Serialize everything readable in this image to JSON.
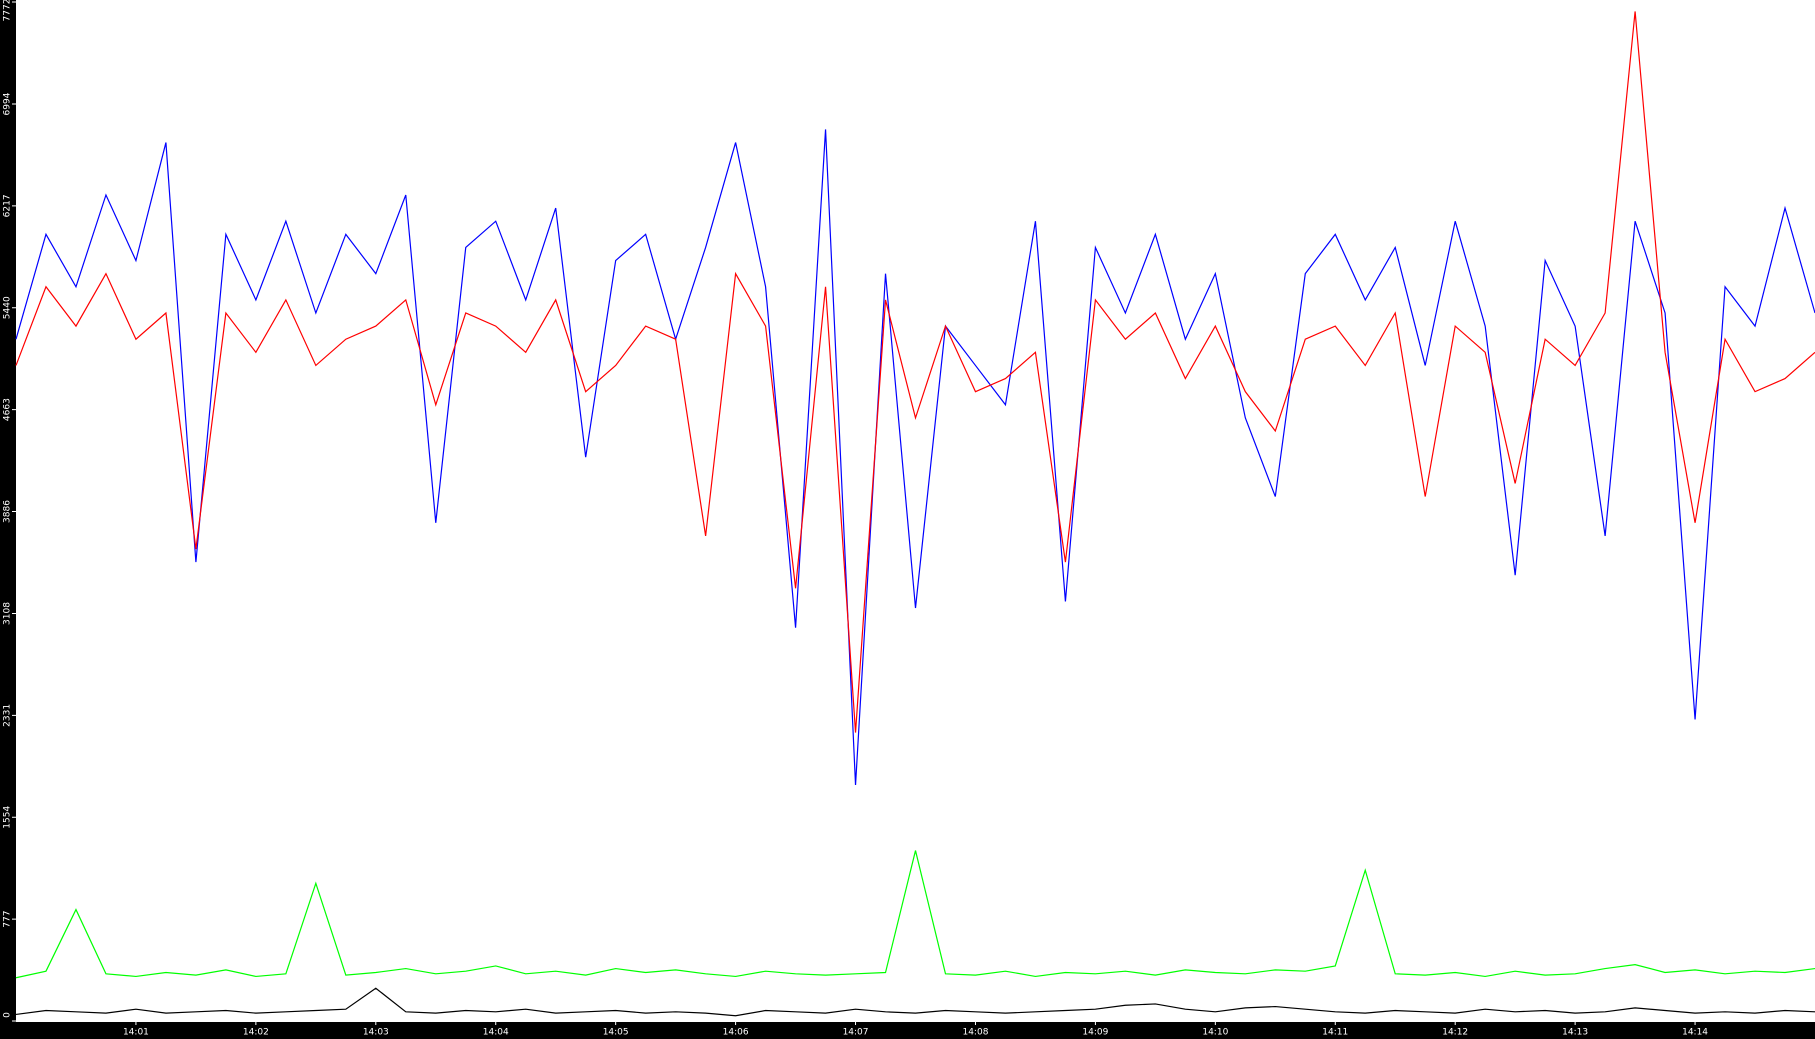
{
  "chart_data": {
    "type": "line",
    "x": [
      0,
      0.25,
      0.5,
      0.75,
      1,
      1.25,
      1.5,
      1.75,
      2,
      2.25,
      2.5,
      2.75,
      3,
      3.25,
      3.5,
      3.75,
      4,
      4.25,
      4.5,
      4.75,
      5,
      5.25,
      5.5,
      5.75,
      6,
      6.25,
      6.5,
      6.75,
      7,
      7.25,
      7.5,
      7.75,
      8,
      8.25,
      8.5,
      8.75,
      9,
      9.25,
      9.5,
      9.75,
      10,
      10.25,
      10.5,
      10.75,
      11,
      11.25,
      11.5,
      11.75,
      12,
      12.25,
      12.5,
      12.75,
      13,
      13.25,
      13.5,
      13.75,
      14,
      14.25,
      14.5,
      14.75,
      15
    ],
    "series": [
      {
        "color": "#0000ff",
        "values": [
          5200,
          6000,
          5600,
          6300,
          5800,
          6700,
          3500,
          6000,
          5500,
          6100,
          5400,
          6000,
          5700,
          6300,
          3800,
          5900,
          6100,
          5500,
          6200,
          4300,
          5800,
          6000,
          5200,
          5900,
          6700,
          5600,
          3000,
          6800,
          1800,
          5700,
          3150,
          5300,
          5000,
          4700,
          6100,
          3200,
          5900,
          5400,
          6000,
          5200,
          5700,
          4600,
          4000,
          5700,
          6000,
          5500,
          5900,
          5000,
          6100,
          5300,
          3400,
          5800,
          5300,
          3700,
          6100,
          5400,
          2300,
          5600,
          5300,
          6200,
          5400
        ]
      },
      {
        "color": "#ff0000",
        "values": [
          5000,
          5600,
          5300,
          5700,
          5200,
          5400,
          3600,
          5400,
          5100,
          5500,
          5000,
          5200,
          5300,
          5500,
          4700,
          5400,
          5300,
          5100,
          5500,
          4800,
          5000,
          5300,
          5200,
          3700,
          5700,
          5300,
          3300,
          5600,
          2200,
          5500,
          4600,
          5300,
          4800,
          4900,
          5100,
          3500,
          5500,
          5200,
          5400,
          4900,
          5300,
          4800,
          4500,
          5200,
          5300,
          5000,
          5400,
          4000,
          5300,
          5100,
          4100,
          5200,
          5000,
          5400,
          7700,
          5100,
          3800,
          5200,
          4800,
          4900,
          5100
        ]
      },
      {
        "color": "#00ff00",
        "values": [
          330,
          380,
          850,
          360,
          340,
          370,
          350,
          390,
          340,
          360,
          1050,
          350,
          370,
          400,
          360,
          380,
          420,
          360,
          380,
          350,
          400,
          370,
          390,
          360,
          340,
          380,
          360,
          350,
          360,
          370,
          1300,
          360,
          350,
          380,
          340,
          370,
          360,
          380,
          350,
          390,
          370,
          360,
          390,
          380,
          420,
          1150,
          360,
          350,
          370,
          340,
          380,
          350,
          360,
          400,
          430,
          370,
          390,
          360,
          380,
          370,
          400
        ]
      },
      {
        "color": "#000000",
        "values": [
          50,
          80,
          70,
          60,
          90,
          60,
          70,
          80,
          60,
          70,
          80,
          90,
          250,
          70,
          60,
          80,
          70,
          90,
          60,
          70,
          80,
          60,
          70,
          60,
          40,
          80,
          70,
          60,
          90,
          70,
          60,
          80,
          70,
          60,
          70,
          80,
          90,
          120,
          130,
          90,
          70,
          100,
          110,
          90,
          70,
          60,
          80,
          70,
          60,
          90,
          70,
          80,
          60,
          70,
          100,
          80,
          60,
          70,
          60,
          80,
          70
        ]
      }
    ],
    "xlim": [
      0,
      15
    ],
    "xticks": [
      {
        "value": 1,
        "label": "14:01"
      },
      {
        "value": 2,
        "label": "14:02"
      },
      {
        "value": 3,
        "label": "14:03"
      },
      {
        "value": 4,
        "label": "14:04"
      },
      {
        "value": 5,
        "label": "14:05"
      },
      {
        "value": 6,
        "label": "14:06"
      },
      {
        "value": 7,
        "label": "14:07"
      },
      {
        "value": 8,
        "label": "14:08"
      },
      {
        "value": 9,
        "label": "14:09"
      },
      {
        "value": 10,
        "label": "14:10"
      },
      {
        "value": 11,
        "label": "14:11"
      },
      {
        "value": 12,
        "label": "14:12"
      },
      {
        "value": 13,
        "label": "14:13"
      },
      {
        "value": 14,
        "label": "14:14"
      }
    ],
    "ylim": [
      0,
      7772
    ],
    "yticks": [
      0,
      777,
      1554,
      2331,
      3108,
      3886,
      4663,
      5440,
      6217,
      6994,
      7772
    ]
  }
}
